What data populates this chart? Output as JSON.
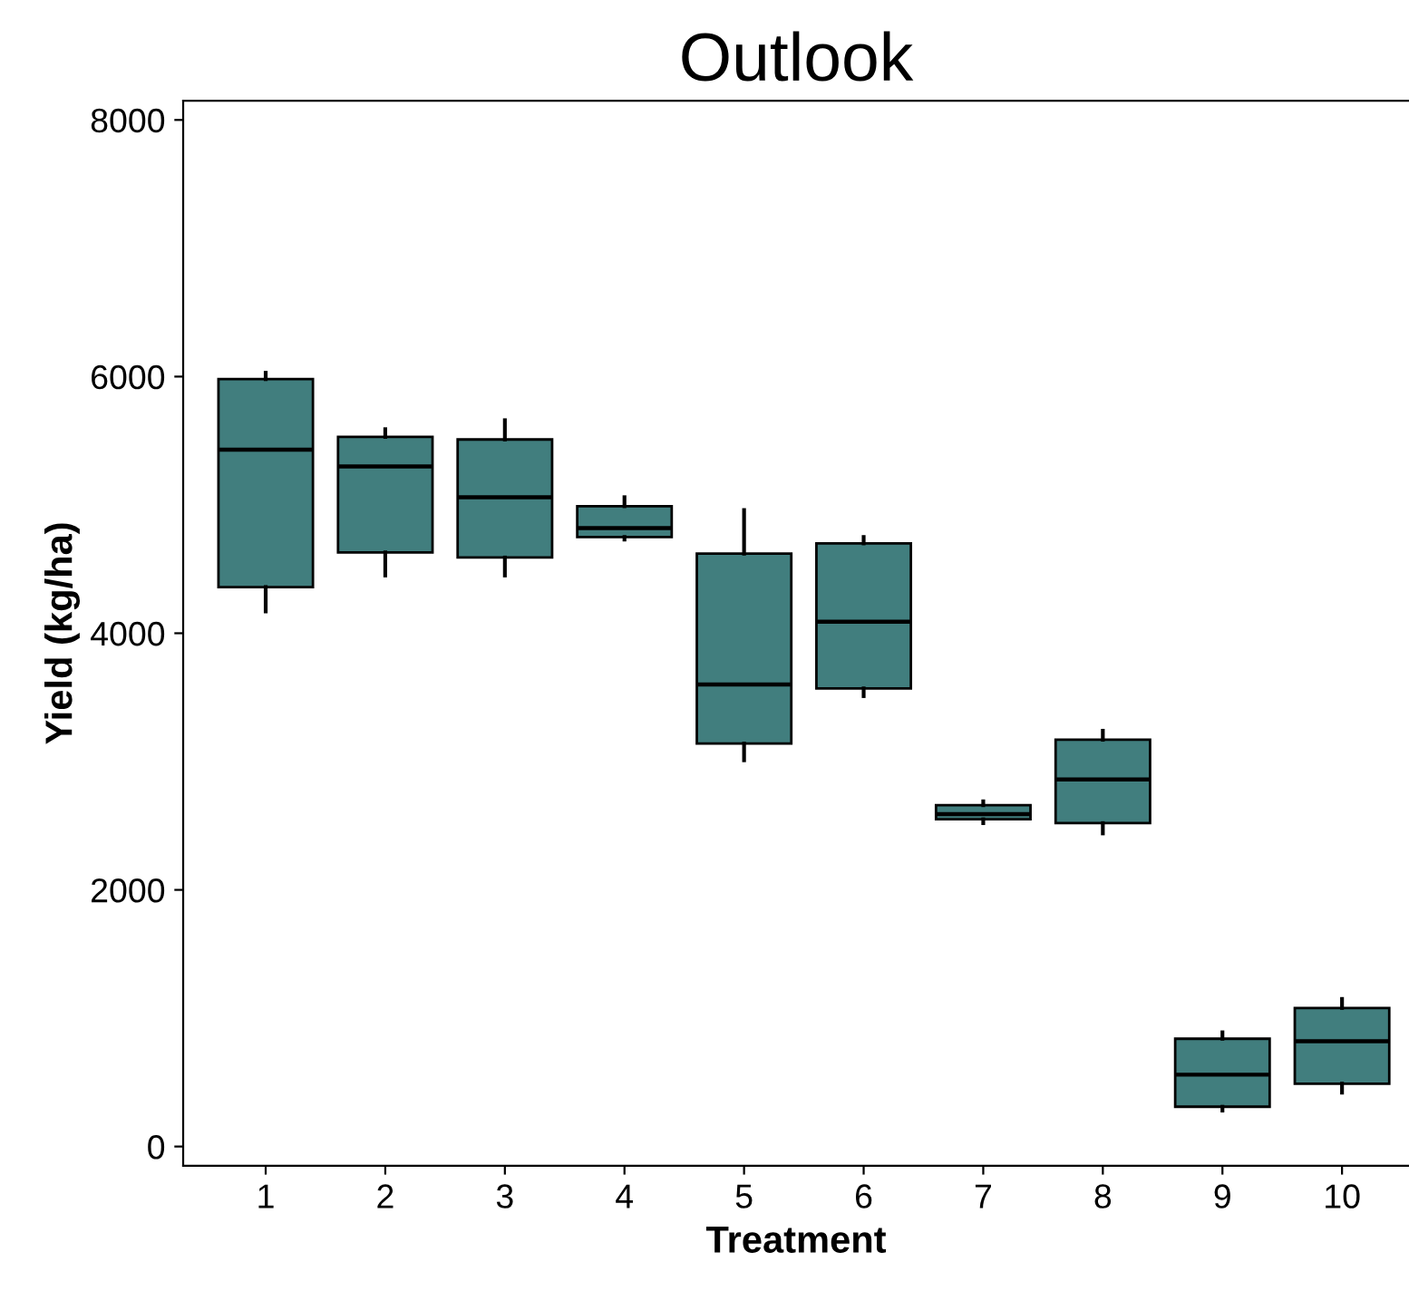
{
  "chart_data": {
    "type": "box",
    "title": "Outlook",
    "xlabel": "Treatment",
    "ylabel": "Yield (kg/ha)",
    "categories": [
      "1",
      "2",
      "3",
      "4",
      "5",
      "6",
      "7",
      "8",
      "9",
      "10"
    ],
    "series": [
      {
        "color": "#417e7e",
        "boxes": [
          {
            "low": 4170,
            "q1": 4360,
            "median": 5430,
            "q3": 5980,
            "high": 6030
          },
          {
            "low": 4450,
            "q1": 4630,
            "median": 5300,
            "q3": 5530,
            "high": 5590
          },
          {
            "low": 4450,
            "q1": 4590,
            "median": 5060,
            "q3": 5510,
            "high": 5660
          },
          {
            "low": 4730,
            "q1": 4750,
            "median": 4820,
            "q3": 4990,
            "high": 5060
          },
          {
            "low": 3010,
            "q1": 3140,
            "median": 3600,
            "q3": 4620,
            "high": 4960
          },
          {
            "low": 3510,
            "q1": 3570,
            "median": 4090,
            "q3": 4700,
            "high": 4750
          },
          {
            "low": 2520,
            "q1": 2550,
            "median": 2590,
            "q3": 2660,
            "high": 2690
          },
          {
            "low": 2440,
            "q1": 2520,
            "median": 2860,
            "q3": 3170,
            "high": 3240
          },
          {
            "low": 280,
            "q1": 310,
            "median": 560,
            "q3": 840,
            "high": 890
          },
          {
            "low": 420,
            "q1": 490,
            "median": 820,
            "q3": 1080,
            "high": 1150
          }
        ]
      }
    ],
    "ylim": [
      -150,
      8150
    ],
    "yticks": [
      0,
      2000,
      4000,
      6000,
      8000
    ],
    "grid": false
  }
}
